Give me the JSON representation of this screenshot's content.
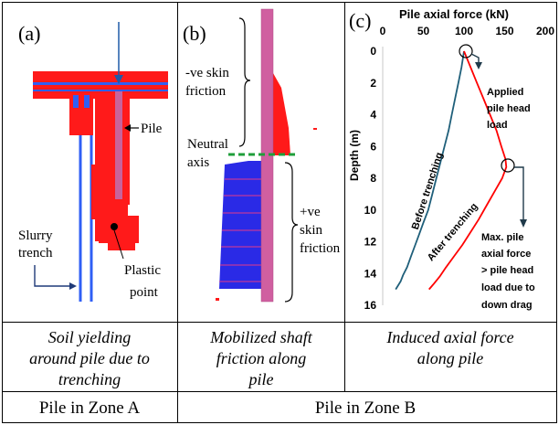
{
  "panels": {
    "a": {
      "tag": "(a)",
      "pile_label": "Pile",
      "slurry_label_line1": "Slurry",
      "slurry_label_line2": "trench",
      "plastic_label_line1": "Plastic",
      "plastic_label_line2": "point",
      "colors": {
        "plastic": "#ff1a1a",
        "pile": "#c8639b",
        "trench": "#2f5ff5"
      }
    },
    "b": {
      "tag": "(b)",
      "neg_friction_line1": "-ve skin",
      "neg_friction_line2": "friction",
      "neutral_line1": "Neutral",
      "neutral_line2": "axis",
      "pos_friction_line1": "+ve",
      "pos_friction_line2": "skin",
      "pos_friction_line3": "friction",
      "colors": {
        "pile": "#d05fa0",
        "negative": "#ff1a1a",
        "positive": "#2a2ae6",
        "neutral": "#1f9e3a"
      }
    },
    "c": {
      "tag": "(c)",
      "annotation_applied_line1": "Applied",
      "annotation_applied_line2": "pile head",
      "annotation_applied_line3": "load",
      "annotation_max_line1": "Max. pile",
      "annotation_max_line2": "axial force",
      "annotation_max_line3": "> pile head",
      "annotation_max_line4": "load due to",
      "annotation_max_line5": "down drag"
    }
  },
  "chart_data": {
    "type": "line",
    "title": "Pile axial force (kN)",
    "xlabel": "Pile axial force (kN)",
    "ylabel": "Depth (m)",
    "xlim": [
      0,
      200
    ],
    "ylim": [
      0,
      16
    ],
    "y_inverted": true,
    "x_axis_position": "top",
    "x_ticks": [
      "0",
      "50",
      "100",
      "150",
      "200"
    ],
    "y_ticks": [
      "0",
      "2",
      "4",
      "6",
      "8",
      "10",
      "12",
      "14",
      "16"
    ],
    "series": [
      {
        "name": "Before trenching",
        "color": "#1f5f7a",
        "x": [
          100,
          97,
          93,
          89,
          85,
          81,
          76,
          71,
          66,
          61,
          56,
          50,
          45,
          40,
          35,
          30,
          25,
          22,
          16
        ],
        "y": [
          0,
          1,
          2,
          3,
          4,
          5,
          6,
          7,
          8,
          9,
          10,
          10.8,
          11.5,
          12.2,
          12.9,
          13.6,
          14.1,
          14.5,
          15.0
        ]
      },
      {
        "name": "After trenching",
        "color": "#ff0000",
        "x": [
          100,
          108,
          116,
          124,
          132,
          140,
          146,
          151,
          152,
          147,
          138,
          128,
          118,
          108,
          98,
          88,
          78,
          70,
          62,
          57
        ],
        "y": [
          0,
          1,
          2,
          3,
          4,
          5,
          6,
          6.8,
          7.3,
          8,
          8.8,
          9.7,
          10.6,
          11.4,
          12.2,
          12.9,
          13.6,
          14.2,
          14.7,
          15.0
        ]
      }
    ]
  },
  "captions": {
    "a_line1": "Soil yielding",
    "a_line2": "around pile due to",
    "a_line3": "trenching",
    "b_line1": "Mobilized shaft",
    "b_line2": "friction along",
    "b_line3": "pile",
    "c_line1": "Induced axial force",
    "c_line2": "along pile"
  },
  "zones": {
    "a": "Pile in Zone A",
    "b": "Pile in Zone B"
  }
}
